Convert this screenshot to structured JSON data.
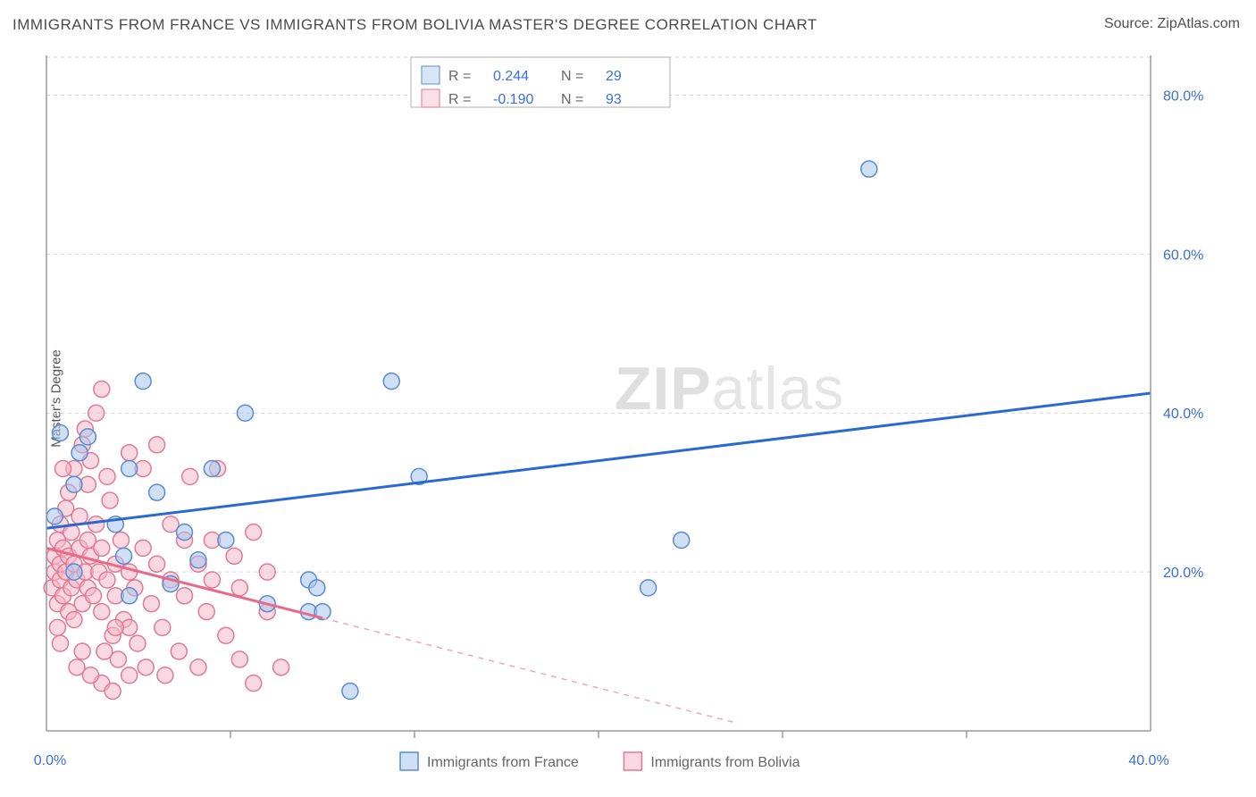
{
  "title": "IMMIGRANTS FROM FRANCE VS IMMIGRANTS FROM BOLIVIA MASTER'S DEGREE CORRELATION CHART",
  "source_label": "Source: ",
  "source_name": "ZipAtlas.com",
  "ylabel": "Master's Degree",
  "watermark_a": "ZIP",
  "watermark_b": "atlas",
  "chart": {
    "type": "scatter",
    "background_color": "#ffffff",
    "grid_color": "#d5d5d5",
    "axis_color": "#9a9a9a",
    "axis_label_color": "#3b6fd6",
    "xlim": [
      0,
      40
    ],
    "ylim": [
      0,
      85
    ],
    "y_ticks": [
      20,
      40,
      60,
      80
    ],
    "y_tick_labels": [
      "20.0%",
      "40.0%",
      "60.0%",
      "80.0%"
    ],
    "x_ticks": [
      0,
      40
    ],
    "x_tick_labels": [
      "0.0%",
      "40.0%"
    ],
    "x_minor_ticks_count": 6,
    "marker_radius": 9,
    "marker_stroke_width": 1.5,
    "series": [
      {
        "name": "Immigrants from France",
        "fill": "#a8c5ed",
        "stroke": "#5a8bd0",
        "fill_opacity": 0.55,
        "r": 0.244,
        "n": 29,
        "trend": {
          "x1": 0,
          "y1": 25.5,
          "x2": 40,
          "y2": 42.5,
          "solid_end_x": 40
        },
        "points": [
          [
            0.3,
            27
          ],
          [
            0.5,
            37.5
          ],
          [
            1.0,
            20
          ],
          [
            1.0,
            31
          ],
          [
            1.2,
            35
          ],
          [
            1.5,
            37
          ],
          [
            2.5,
            26
          ],
          [
            2.8,
            22
          ],
          [
            3.0,
            17
          ],
          [
            3.0,
            33
          ],
          [
            3.5,
            44
          ],
          [
            4.0,
            30
          ],
          [
            4.5,
            18.5
          ],
          [
            5.0,
            25
          ],
          [
            5.5,
            21.5
          ],
          [
            6.0,
            33
          ],
          [
            6.5,
            24
          ],
          [
            7.2,
            40
          ],
          [
            8.0,
            16
          ],
          [
            9.5,
            19
          ],
          [
            9.5,
            15
          ],
          [
            9.8,
            18
          ],
          [
            10.0,
            15
          ],
          [
            11.0,
            5
          ],
          [
            12.5,
            44
          ],
          [
            13.5,
            32
          ],
          [
            21.8,
            18
          ],
          [
            23.0,
            24
          ],
          [
            29.8,
            70.7
          ]
        ]
      },
      {
        "name": "Immigrants from Bolivia",
        "fill": "#f5b8c8",
        "stroke": "#e07a95",
        "fill_opacity": 0.55,
        "r": -0.19,
        "n": 93,
        "trend": {
          "x1": 0,
          "y1": 23,
          "x2": 25,
          "y2": 1,
          "solid_end_x": 10
        },
        "points": [
          [
            0.2,
            18
          ],
          [
            0.3,
            20
          ],
          [
            0.3,
            22
          ],
          [
            0.4,
            16
          ],
          [
            0.4,
            24
          ],
          [
            0.5,
            19
          ],
          [
            0.5,
            21
          ],
          [
            0.5,
            26
          ],
          [
            0.6,
            17
          ],
          [
            0.6,
            23
          ],
          [
            0.7,
            20
          ],
          [
            0.7,
            28
          ],
          [
            0.8,
            15
          ],
          [
            0.8,
            22
          ],
          [
            0.8,
            30
          ],
          [
            0.9,
            18
          ],
          [
            0.9,
            25
          ],
          [
            1.0,
            14
          ],
          [
            1.0,
            21
          ],
          [
            1.0,
            33
          ],
          [
            1.1,
            19
          ],
          [
            1.2,
            23
          ],
          [
            1.2,
            27
          ],
          [
            1.3,
            16
          ],
          [
            1.3,
            36
          ],
          [
            1.4,
            20
          ],
          [
            1.5,
            18
          ],
          [
            1.5,
            24
          ],
          [
            1.5,
            31
          ],
          [
            1.6,
            22
          ],
          [
            1.7,
            17
          ],
          [
            1.8,
            26
          ],
          [
            1.8,
            40
          ],
          [
            1.9,
            20
          ],
          [
            2.0,
            15
          ],
          [
            2.0,
            23
          ],
          [
            2.0,
            43
          ],
          [
            2.1,
            10
          ],
          [
            2.2,
            19
          ],
          [
            2.3,
            29
          ],
          [
            2.4,
            12
          ],
          [
            2.5,
            21
          ],
          [
            2.5,
            17
          ],
          [
            2.6,
            9
          ],
          [
            2.7,
            24
          ],
          [
            2.8,
            14
          ],
          [
            3.0,
            20
          ],
          [
            3.0,
            35
          ],
          [
            3.0,
            7
          ],
          [
            3.2,
            18
          ],
          [
            3.3,
            11
          ],
          [
            3.5,
            23
          ],
          [
            3.5,
            33
          ],
          [
            3.6,
            8
          ],
          [
            3.8,
            16
          ],
          [
            4.0,
            21
          ],
          [
            4.0,
            36
          ],
          [
            4.2,
            13
          ],
          [
            4.5,
            26
          ],
          [
            4.5,
            19
          ],
          [
            4.8,
            10
          ],
          [
            5.0,
            24
          ],
          [
            5.0,
            17
          ],
          [
            5.2,
            32
          ],
          [
            5.5,
            8
          ],
          [
            5.5,
            21
          ],
          [
            5.8,
            15
          ],
          [
            6.0,
            24
          ],
          [
            6.0,
            19
          ],
          [
            6.2,
            33
          ],
          [
            6.5,
            12
          ],
          [
            6.8,
            22
          ],
          [
            7.0,
            9
          ],
          [
            7.0,
            18
          ],
          [
            7.5,
            25
          ],
          [
            7.5,
            6
          ],
          [
            8.0,
            15
          ],
          [
            8.0,
            20
          ],
          [
            8.5,
            8
          ],
          [
            1.4,
            38
          ],
          [
            1.6,
            34
          ],
          [
            2.2,
            32
          ],
          [
            0.6,
            33
          ],
          [
            2.0,
            6
          ],
          [
            2.4,
            5
          ],
          [
            0.4,
            13
          ],
          [
            0.5,
            11
          ],
          [
            3.0,
            13
          ],
          [
            2.5,
            13
          ],
          [
            4.3,
            7
          ],
          [
            1.1,
            8
          ],
          [
            1.3,
            10
          ],
          [
            1.6,
            7
          ]
        ]
      }
    ],
    "legend_top": {
      "box_stroke": "#b0b0b0",
      "r_label": "R  =",
      "n_label": "N  ="
    },
    "legend_bottom": [
      {
        "label": "Immigrants from France",
        "fill": "#a8c5ed",
        "stroke": "#5a8bd0"
      },
      {
        "label": "Immigrants from Bolivia",
        "fill": "#f5b8c8",
        "stroke": "#e07a95"
      }
    ]
  }
}
